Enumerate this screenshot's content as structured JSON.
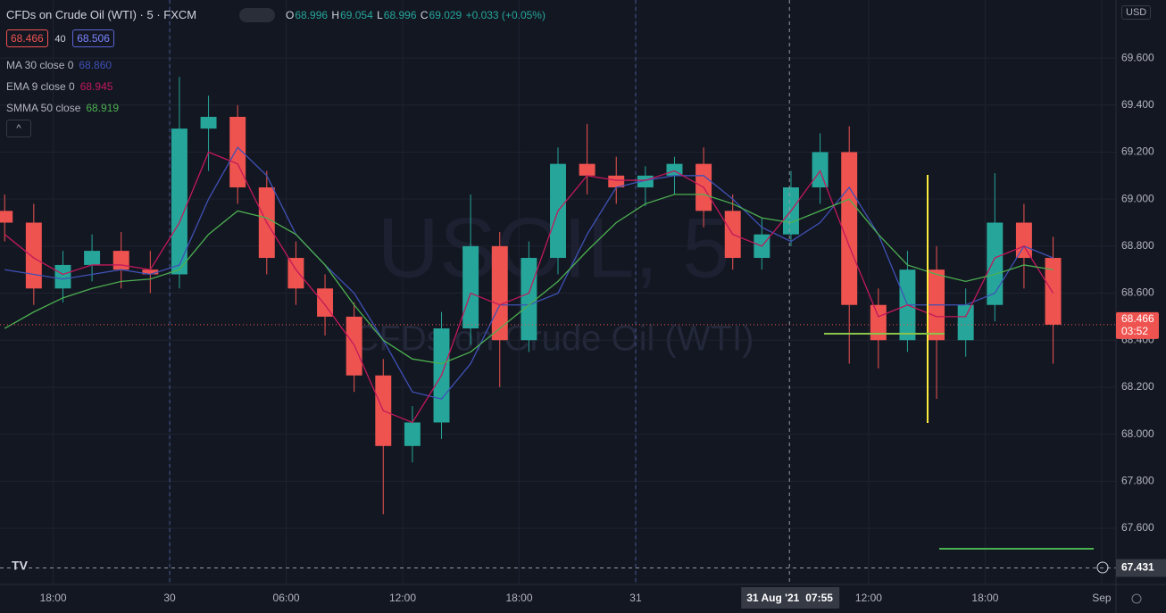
{
  "header": {
    "symbol": "CFDs on Crude Oil (WTI)",
    "interval": "5",
    "exchange": "FXCM",
    "ohlc": {
      "open": "68.996",
      "high": "69.054",
      "low": "68.996",
      "close": "69.029",
      "change": "+0.033 (+0.05%)"
    },
    "bid": "68.466",
    "spread": "40",
    "ask": "68.506",
    "currency": "USD"
  },
  "indicators": [
    {
      "name": "MA 30 close 0",
      "value": "68.860",
      "color": "#3f51b5"
    },
    {
      "name": "EMA 9 close 0",
      "value": "68.945",
      "color": "#c2185b"
    },
    {
      "name": "SMMA 50 close",
      "value": "68.919",
      "color": "#4caf50"
    }
  ],
  "watermark": {
    "symbol": "USOIL, 5",
    "description": "CFDs on Crude Oil (WTI)"
  },
  "chart_data": {
    "type": "candlestick",
    "x": [
      -8.5,
      -7,
      -5.5,
      -4,
      -2.5,
      -1,
      0.5,
      2,
      3.5,
      5,
      6.5,
      8,
      9.5,
      11,
      12.5,
      14,
      15.5,
      17,
      18.5,
      20,
      21.5,
      23,
      24.5,
      26,
      27.5,
      29,
      30.5,
      32,
      33.5,
      35,
      36.5,
      38,
      39.5,
      41,
      42.5,
      44,
      45.5
    ],
    "open": [
      68.95,
      68.9,
      68.62,
      68.72,
      68.78,
      68.7,
      68.68,
      69.3,
      69.35,
      69.05,
      68.75,
      68.62,
      68.5,
      68.25,
      67.95,
      68.05,
      68.45,
      68.8,
      68.4,
      68.75,
      69.15,
      69.1,
      69.05,
      69.1,
      69.15,
      68.95,
      68.75,
      68.85,
      69.05,
      69.2,
      68.55,
      68.4,
      68.7,
      68.4,
      68.55,
      68.9,
      68.75
    ],
    "high": [
      69.02,
      68.98,
      68.78,
      68.85,
      68.86,
      68.78,
      69.52,
      69.44,
      69.4,
      69.12,
      68.82,
      68.68,
      68.56,
      68.32,
      68.12,
      68.52,
      69.02,
      68.86,
      68.82,
      69.22,
      69.32,
      69.18,
      69.14,
      69.18,
      69.22,
      69.02,
      68.92,
      69.12,
      69.28,
      69.31,
      68.62,
      68.78,
      68.8,
      68.62,
      69.11,
      68.98,
      68.84
    ],
    "low": [
      68.82,
      68.55,
      68.56,
      68.65,
      68.62,
      68.6,
      68.62,
      69.12,
      68.98,
      68.68,
      68.55,
      68.42,
      68.18,
      67.66,
      67.88,
      67.98,
      68.38,
      68.2,
      68.35,
      68.68,
      69.02,
      68.98,
      68.97,
      69.02,
      68.88,
      68.7,
      68.7,
      68.8,
      68.98,
      68.3,
      68.28,
      68.35,
      68.15,
      68.33,
      68.48,
      68.62,
      68.3
    ],
    "close": [
      68.9,
      68.62,
      68.72,
      68.78,
      68.7,
      68.68,
      69.3,
      69.35,
      69.05,
      68.75,
      68.62,
      68.5,
      68.25,
      67.95,
      68.05,
      68.45,
      68.8,
      68.4,
      68.75,
      69.15,
      69.1,
      69.05,
      69.1,
      69.15,
      68.95,
      68.75,
      68.85,
      69.05,
      69.2,
      68.55,
      68.4,
      68.7,
      68.4,
      68.55,
      68.9,
      68.75,
      68.466
    ],
    "up_color": "#26a69a",
    "down_color": "#ef5350",
    "series": [
      {
        "color": "#3f51b5",
        "values": [
          68.7,
          68.68,
          68.66,
          68.68,
          68.7,
          68.68,
          68.72,
          69.0,
          69.22,
          69.1,
          68.85,
          68.72,
          68.6,
          68.4,
          68.18,
          68.15,
          68.3,
          68.55,
          68.55,
          68.6,
          68.85,
          69.05,
          69.08,
          69.1,
          69.1,
          69.0,
          68.88,
          68.82,
          68.9,
          69.05,
          68.85,
          68.55,
          68.55,
          68.55,
          68.6,
          68.8,
          68.75
        ]
      },
      {
        "color": "#c2185b",
        "values": [
          68.85,
          68.75,
          68.68,
          68.72,
          68.72,
          68.7,
          68.9,
          69.2,
          69.15,
          68.9,
          68.7,
          68.55,
          68.38,
          68.1,
          68.05,
          68.25,
          68.6,
          68.55,
          68.6,
          68.95,
          69.1,
          69.08,
          69.08,
          69.12,
          69.05,
          68.85,
          68.8,
          68.95,
          69.12,
          68.8,
          68.5,
          68.55,
          68.5,
          68.5,
          68.75,
          68.8,
          68.6
        ]
      },
      {
        "color": "#4caf50",
        "values": [
          68.45,
          68.52,
          68.58,
          68.62,
          68.65,
          68.66,
          68.7,
          68.85,
          68.95,
          68.92,
          68.85,
          68.72,
          68.55,
          68.4,
          68.32,
          68.3,
          68.35,
          68.45,
          68.55,
          68.65,
          68.78,
          68.9,
          68.98,
          69.02,
          69.02,
          68.98,
          68.92,
          68.9,
          68.95,
          69.0,
          68.85,
          68.72,
          68.68,
          68.65,
          68.68,
          68.72,
          68.7
        ]
      }
    ],
    "xlim": [
      -8.74,
      48.74
    ],
    "ylim": [
      67.361,
      69.847
    ],
    "xticks": [
      {
        "value": -6,
        "label": "18:00"
      },
      {
        "value": 0,
        "label": "30"
      },
      {
        "value": 6,
        "label": "06:00"
      },
      {
        "value": 12,
        "label": "12:00"
      },
      {
        "value": 18,
        "label": "18:00"
      },
      {
        "value": 24,
        "label": "31"
      },
      {
        "value": 36,
        "label": "12:00"
      },
      {
        "value": 42,
        "label": "18:00"
      },
      {
        "value": 48,
        "label": "Sep"
      }
    ],
    "yticks": [
      {
        "value": 67.6,
        "label": "67.600"
      },
      {
        "value": 67.8,
        "label": "67.800"
      },
      {
        "value": 68,
        "label": "68.000"
      },
      {
        "value": 68.2,
        "label": "68.200"
      },
      {
        "value": 68.4,
        "label": "68.400"
      },
      {
        "value": 68.6,
        "label": "68.600"
      },
      {
        "value": 68.8,
        "label": "68.800"
      },
      {
        "value": 69,
        "label": "69.000"
      },
      {
        "value": 69.2,
        "label": "69.200"
      },
      {
        "value": 69.4,
        "label": "69.400"
      },
      {
        "value": 69.6,
        "label": "69.600"
      }
    ],
    "session_breaks": [
      0,
      24
    ],
    "grid": true,
    "last_price": 68.466,
    "countdown": "03:52",
    "crosshair": {
      "x": 31.92,
      "date_label": "31 Aug '21",
      "time_label": "07:55",
      "y": 67.431
    }
  }
}
